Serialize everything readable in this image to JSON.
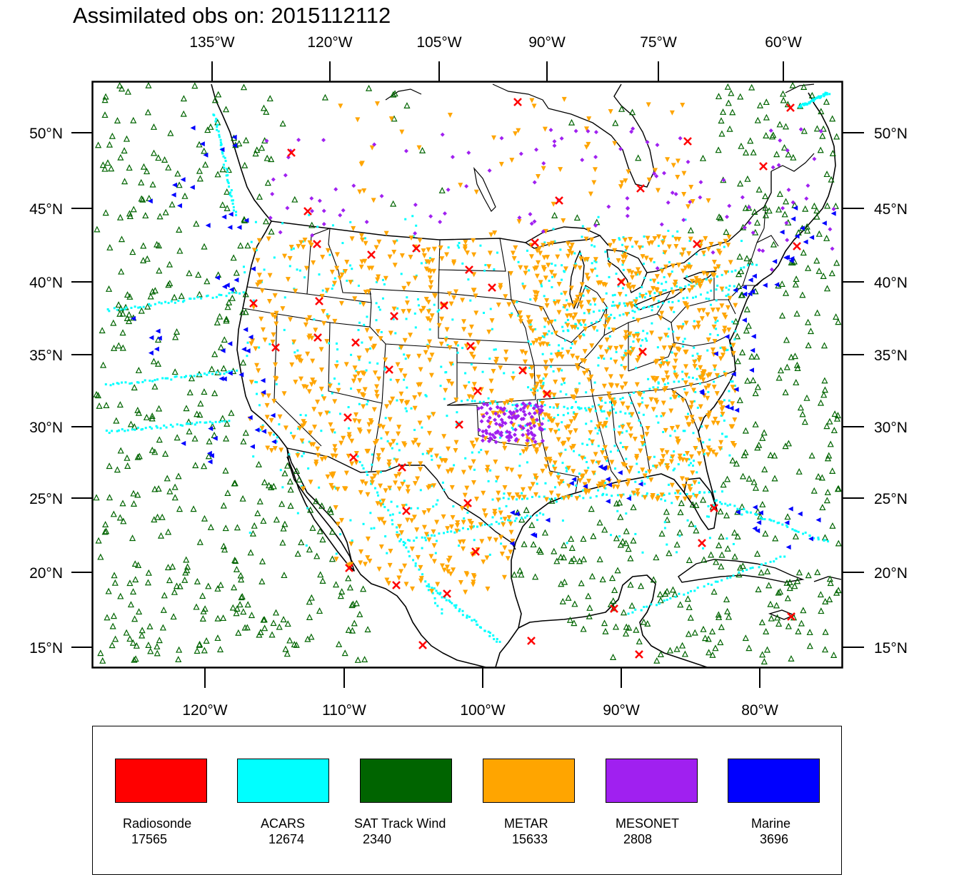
{
  "title": "Assimilated obs on: 2015112112",
  "top_axis_labels": [
    "135°W",
    "120°W",
    "105°W",
    "90°W",
    "75°W",
    "60°W"
  ],
  "bottom_axis_labels": [
    "120°W",
    "110°W",
    "100°W",
    "90°W",
    "80°W"
  ],
  "left_axis_labels": [
    "50°N",
    "45°N",
    "40°N",
    "35°N",
    "30°N",
    "25°N",
    "20°N",
    "15°N"
  ],
  "right_axis_labels": [
    "50°N",
    "45°N",
    "40°N",
    "35°N",
    "30°N",
    "25°N",
    "20°N",
    "15°N"
  ],
  "legend": [
    {
      "label": "Radiosonde",
      "count": "17565",
      "color": "#ff0000"
    },
    {
      "label": "ACARS",
      "count": "12674",
      "color": "#00ffff"
    },
    {
      "label": "SAT Track Wind",
      "count": "2340",
      "color": "#006400"
    },
    {
      "label": "METAR",
      "count": "15633",
      "color": "#ffa500"
    },
    {
      "label": "MESONET",
      "count": "2808",
      "color": "#a020f0"
    },
    {
      "label": "Marine",
      "count": "3696",
      "color": "#0000ff"
    }
  ],
  "map": {
    "lon_range": [
      -128,
      -74
    ],
    "lat_range": [
      14,
      53
    ],
    "marker_symbols": {
      "Radiosonde": "x-mark",
      "ACARS": "square-dot",
      "SAT Track Wind": "open-triangle",
      "METAR": "down-triangle",
      "MESONET": "diamond",
      "Marine": "left-triangle"
    }
  }
}
